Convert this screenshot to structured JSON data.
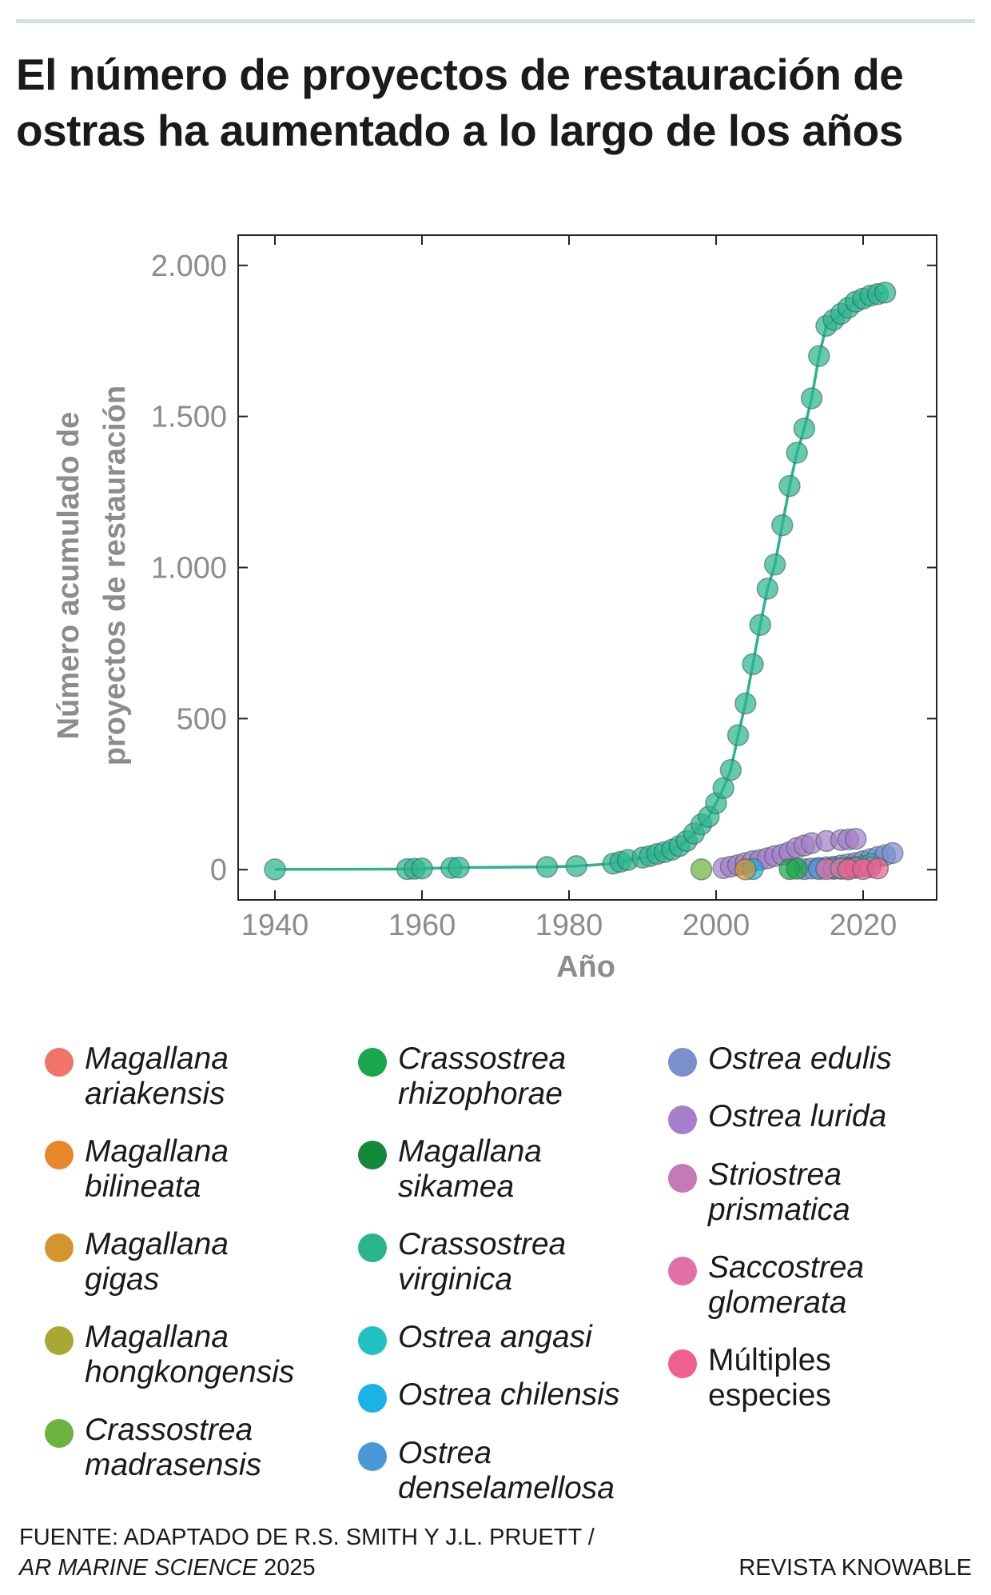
{
  "title": "El número de proyectos de restauración de ostras ha aumentado a lo largo de los años",
  "chart_data": {
    "type": "line",
    "xlabel": "Año",
    "ylabel_line1": "Número acumulado de",
    "ylabel_line2": "proyectos de restauración",
    "xlim": [
      1935,
      2030
    ],
    "ylim": [
      -100,
      2100
    ],
    "x_ticks": [
      1940,
      1960,
      1980,
      2000,
      2020
    ],
    "x_tick_labels": [
      "1940",
      "1960",
      "1980",
      "2000",
      "2020"
    ],
    "y_ticks": [
      0,
      500,
      1000,
      1500,
      2000
    ],
    "y_tick_labels": [
      "0",
      "500",
      "1.000",
      "1.500",
      "2.000"
    ],
    "series": [
      {
        "name": "Crassostrea virginica",
        "color": "#2bb58f",
        "line": true,
        "points": [
          [
            1940,
            1
          ],
          [
            1958,
            2
          ],
          [
            1959,
            3
          ],
          [
            1960,
            4
          ],
          [
            1964,
            6
          ],
          [
            1965,
            7
          ],
          [
            1977,
            9
          ],
          [
            1981,
            12
          ],
          [
            1986,
            20
          ],
          [
            1987,
            26
          ],
          [
            1988,
            32
          ],
          [
            1990,
            40
          ],
          [
            1991,
            45
          ],
          [
            1992,
            52
          ],
          [
            1993,
            58
          ],
          [
            1994,
            66
          ],
          [
            1995,
            78
          ],
          [
            1996,
            95
          ],
          [
            1997,
            120
          ],
          [
            1998,
            150
          ],
          [
            1999,
            175
          ],
          [
            2000,
            220
          ],
          [
            2001,
            270
          ],
          [
            2002,
            330
          ],
          [
            2003,
            445
          ],
          [
            2004,
            550
          ],
          [
            2005,
            680
          ],
          [
            2006,
            810
          ],
          [
            2007,
            930
          ],
          [
            2008,
            1010
          ],
          [
            2009,
            1140
          ],
          [
            2010,
            1270
          ],
          [
            2011,
            1380
          ],
          [
            2012,
            1460
          ],
          [
            2013,
            1560
          ],
          [
            2014,
            1700
          ],
          [
            2015,
            1800
          ],
          [
            2016,
            1820
          ],
          [
            2017,
            1840
          ],
          [
            2018,
            1860
          ],
          [
            2019,
            1880
          ],
          [
            2020,
            1890
          ],
          [
            2021,
            1900
          ],
          [
            2022,
            1905
          ],
          [
            2023,
            1910
          ]
        ]
      },
      {
        "name": "Ostrea lurida",
        "color": "#a57fc9",
        "line": false,
        "points": [
          [
            2001,
            5
          ],
          [
            2002,
            10
          ],
          [
            2003,
            15
          ],
          [
            2004,
            22
          ],
          [
            2005,
            28
          ],
          [
            2006,
            32
          ],
          [
            2007,
            38
          ],
          [
            2008,
            45
          ],
          [
            2009,
            50
          ],
          [
            2010,
            58
          ],
          [
            2011,
            72
          ],
          [
            2012,
            80
          ],
          [
            2013,
            88
          ],
          [
            2015,
            95
          ],
          [
            2017,
            98
          ],
          [
            2018,
            100
          ],
          [
            2019,
            102
          ]
        ]
      },
      {
        "name": "Ostrea edulis",
        "color": "#7b8fcf",
        "line": false,
        "points": [
          [
            2012,
            2
          ],
          [
            2013,
            4
          ],
          [
            2014,
            6
          ],
          [
            2015,
            8
          ],
          [
            2016,
            10
          ],
          [
            2017,
            14
          ],
          [
            2018,
            18
          ],
          [
            2019,
            22
          ],
          [
            2020,
            28
          ],
          [
            2021,
            35
          ],
          [
            2022,
            42
          ],
          [
            2023,
            48
          ],
          [
            2024,
            55
          ]
        ]
      },
      {
        "name": "Crassostrea madrasensis",
        "color": "#6db33f",
        "line": false,
        "points": [
          [
            1998,
            1
          ]
        ]
      },
      {
        "name": "Crassostrea rhizophorae",
        "color": "#1aa64a",
        "line": false,
        "points": [
          [
            2010,
            2
          ],
          [
            2011,
            3
          ]
        ]
      },
      {
        "name": "Ostrea chilensis",
        "color": "#19b3e6",
        "line": false,
        "points": [
          [
            2005,
            2
          ]
        ]
      },
      {
        "name": "Magallana gigas",
        "color": "#d4962c",
        "line": false,
        "points": [
          [
            2004,
            1
          ],
          [
            2016,
            3
          ]
        ]
      },
      {
        "name": "Ostrea denselamellosa",
        "color": "#4a98d6",
        "line": false,
        "points": [
          [
            2014,
            2
          ],
          [
            2016,
            4
          ],
          [
            2018,
            6
          ]
        ]
      },
      {
        "name": "Ostrea angasi",
        "color": "#1fc1c2",
        "line": false,
        "points": [
          [
            2017,
            3
          ],
          [
            2018,
            5
          ],
          [
            2019,
            8
          ],
          [
            2020,
            12
          ],
          [
            2021,
            18
          ]
        ]
      },
      {
        "name": "Saccostrea glomerata",
        "color": "#e36fa8",
        "line": false,
        "points": [
          [
            2015,
            2
          ],
          [
            2017,
            4
          ],
          [
            2019,
            6
          ],
          [
            2021,
            8
          ]
        ]
      },
      {
        "name": "Múltiples especies",
        "color": "#ef5f8f",
        "line": false,
        "points": [
          [
            2018,
            1
          ],
          [
            2020,
            2
          ],
          [
            2022,
            4
          ]
        ]
      }
    ]
  },
  "legend": [
    {
      "name": "Magallana ariakensis",
      "line1": "Magallana",
      "line2": "ariakensis",
      "color": "#f07468",
      "italic": true
    },
    {
      "name": "Magallana bilineata",
      "line1": "Magallana",
      "line2": "bilineata",
      "color": "#e8862a",
      "italic": true
    },
    {
      "name": "Magallana gigas",
      "line1": "Magallana",
      "line2": "gigas",
      "color": "#d4962c",
      "italic": true
    },
    {
      "name": "Magallana hongkongensis",
      "line1": "Magallana",
      "line2": "hongkongensis",
      "color": "#a8a832",
      "italic": true
    },
    {
      "name": "Crassostrea madrasensis",
      "line1": "Crassostrea",
      "line2": "madrasensis",
      "color": "#6db33f",
      "italic": true
    },
    {
      "name": "Crassostrea rhizophorae",
      "line1": "Crassostrea",
      "line2": "rhizophorae",
      "color": "#1aa64a",
      "italic": true
    },
    {
      "name": "Magallana sikamea",
      "line1": "Magallana",
      "line2": "sikamea",
      "color": "#14893c",
      "italic": true
    },
    {
      "name": "Crassostrea virginica",
      "line1": "Crassostrea",
      "line2": "virginica",
      "color": "#2bb58f",
      "italic": true
    },
    {
      "name": "Ostrea angasi",
      "line1": "Ostrea angasi",
      "line2": "",
      "color": "#1fc1c2",
      "italic": true
    },
    {
      "name": "Ostrea chilensis",
      "line1": "Ostrea chilensis",
      "line2": "",
      "color": "#19b3e6",
      "italic": true
    },
    {
      "name": "Ostrea denselamellosa",
      "line1": "Ostrea",
      "line2": "denselamellosa",
      "color": "#4a98d6",
      "italic": true
    },
    {
      "name": "Ostrea edulis",
      "line1": "Ostrea edulis",
      "line2": "",
      "color": "#7b8fcf",
      "italic": true
    },
    {
      "name": "Ostrea lurida",
      "line1": "Ostrea lurida",
      "line2": "",
      "color": "#a57fc9",
      "italic": true
    },
    {
      "name": "Striostrea prismatica",
      "line1": "Striostrea",
      "line2": "prismatica",
      "color": "#c57ab8",
      "italic": true
    },
    {
      "name": "Saccostrea glomerata",
      "line1": "Saccostrea",
      "line2": "glomerata",
      "color": "#e36fa8",
      "italic": true
    },
    {
      "name": "Múltiples especies",
      "line1": "Múltiples",
      "line2": "especies",
      "color": "#ef5f8f",
      "italic": false
    }
  ],
  "source": {
    "prefix": "FUENTE: ADAPTADO DE R.S. SMITH Y J.L. PRUETT /",
    "journal": "AR MARINE SCIENCE",
    "year": "2025"
  },
  "brand": "REVISTA KNOWABLE"
}
